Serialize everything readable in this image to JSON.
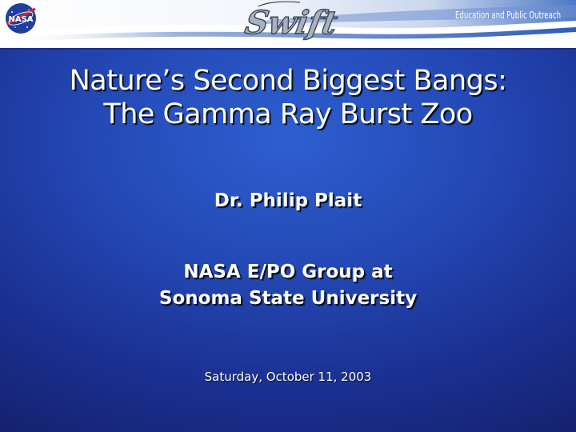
{
  "banner": {
    "nasa_logo_text": "NASA",
    "mission_logo_text": "Swift",
    "tagline": "Education and Public Outreach"
  },
  "slide": {
    "title_line1": "Nature’s Second Biggest Bangs:",
    "title_line2": "The Gamma Ray Burst Zoo",
    "author": "Dr. Philip Plait",
    "affiliation_line1": "NASA E/PO Group at",
    "affiliation_line2": "Sonoma State University",
    "date": "Saturday, October 11, 2003"
  },
  "colors": {
    "background_center": "#2e5fd0",
    "background_edge": "#141f68",
    "banner_white": "#ffffff",
    "banner_blue": "#3f6fc8",
    "text": "#ffffff"
  }
}
